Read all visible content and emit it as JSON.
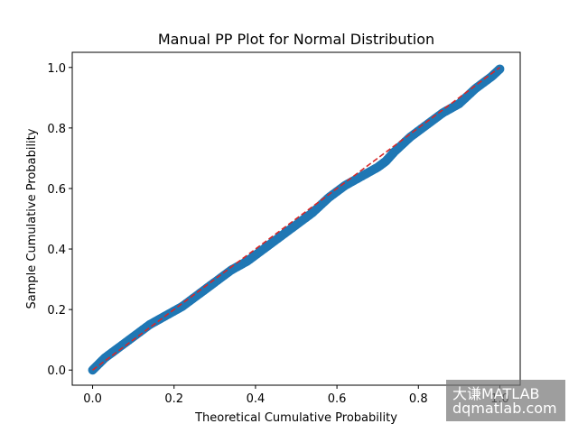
{
  "chart_data": {
    "type": "scatter",
    "title": "Manual PP Plot for Normal Distribution",
    "xlabel": "Theoretical Cumulative Probability",
    "ylabel": "Sample Cumulative Probability",
    "xlim": [
      -0.05,
      1.05
    ],
    "ylim": [
      -0.05,
      1.05
    ],
    "xticks": [
      0.0,
      0.2,
      0.4,
      0.6,
      0.8,
      1.0
    ],
    "yticks": [
      0.0,
      0.2,
      0.4,
      0.6,
      0.8,
      1.0
    ],
    "xtick_labels": [
      "0.0",
      "0.2",
      "0.4",
      "0.6",
      "0.8",
      "1.0"
    ],
    "ytick_labels": [
      "0.0",
      "0.2",
      "0.4",
      "0.6",
      "0.8",
      "1.0"
    ],
    "grid": false,
    "series": [
      {
        "type": "scatter",
        "color": "#1f77b4",
        "x": [
          0.0,
          0.03,
          0.06,
          0.1,
          0.14,
          0.18,
          0.22,
          0.26,
          0.28,
          0.3,
          0.34,
          0.38,
          0.42,
          0.46,
          0.5,
          0.54,
          0.58,
          0.62,
          0.66,
          0.7,
          0.72,
          0.74,
          0.78,
          0.82,
          0.86,
          0.9,
          0.94,
          0.98,
          1.0
        ],
        "y": [
          0.0,
          0.04,
          0.07,
          0.11,
          0.15,
          0.18,
          0.21,
          0.25,
          0.27,
          0.29,
          0.33,
          0.36,
          0.4,
          0.44,
          0.48,
          0.52,
          0.57,
          0.61,
          0.64,
          0.67,
          0.69,
          0.72,
          0.77,
          0.81,
          0.85,
          0.88,
          0.93,
          0.97,
          0.995
        ]
      },
      {
        "type": "line",
        "style": "dashed",
        "color": "#d62728",
        "x": [
          0.0,
          1.0
        ],
        "y": [
          0.0,
          1.0
        ]
      }
    ]
  },
  "watermark": {
    "line1": "大谦MATLAB",
    "line2": "dqmatlab.com"
  }
}
